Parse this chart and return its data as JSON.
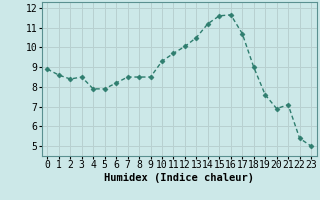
{
  "x": [
    0,
    1,
    2,
    3,
    4,
    5,
    6,
    7,
    8,
    9,
    10,
    11,
    12,
    13,
    14,
    15,
    16,
    17,
    18,
    19,
    20,
    21,
    22,
    23
  ],
  "y": [
    8.9,
    8.6,
    8.4,
    8.5,
    7.9,
    7.9,
    8.2,
    8.5,
    8.5,
    8.5,
    9.3,
    9.7,
    10.05,
    10.5,
    11.2,
    11.6,
    11.65,
    10.7,
    9.0,
    7.6,
    6.9,
    7.1,
    5.4,
    5.0
  ],
  "line_color": "#2e7d6e",
  "bg_color": "#cce8e8",
  "grid_color": "#b8d0d0",
  "xlabel": "Humidex (Indice chaleur)",
  "xlim": [
    -0.5,
    23.5
  ],
  "ylim": [
    4.5,
    12.3
  ],
  "yticks": [
    5,
    6,
    7,
    8,
    9,
    10,
    11,
    12
  ],
  "xticks": [
    0,
    1,
    2,
    3,
    4,
    5,
    6,
    7,
    8,
    9,
    10,
    11,
    12,
    13,
    14,
    15,
    16,
    17,
    18,
    19,
    20,
    21,
    22,
    23
  ],
  "marker": "D",
  "marker_size": 2.5,
  "line_width": 1.0,
  "xlabel_fontsize": 7.5,
  "tick_fontsize": 7.0,
  "spine_color": "#5a9090"
}
